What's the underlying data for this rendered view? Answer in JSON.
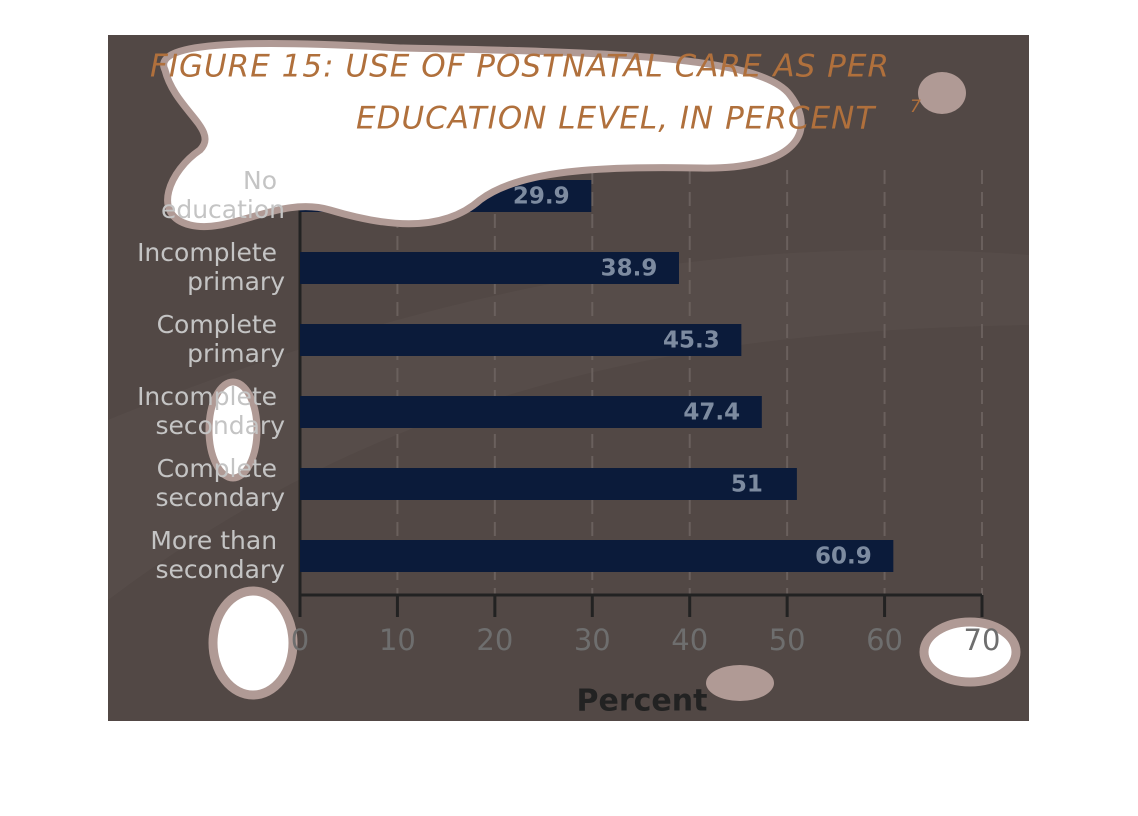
{
  "chart_data": {
    "type": "bar",
    "orientation": "horizontal",
    "title": [
      "FIGURE 15: USE OF POSTNATAL CARE AS PER",
      "EDUCATION LEVEL, IN PERCENT"
    ],
    "title_footnote": "7",
    "categories": [
      "No education",
      "Incomplete primary",
      "Complete primary",
      "Incomplete secondary",
      "Complete secondary",
      "More than secondary"
    ],
    "values": [
      29.9,
      38.9,
      45.3,
      47.4,
      51,
      60.9
    ],
    "color": "#0b1b3a",
    "xlabel": "Percent",
    "xlim": [
      0,
      70
    ],
    "xticks": [
      0,
      10,
      20,
      30,
      40,
      50,
      60,
      70
    ],
    "grid": true
  }
}
